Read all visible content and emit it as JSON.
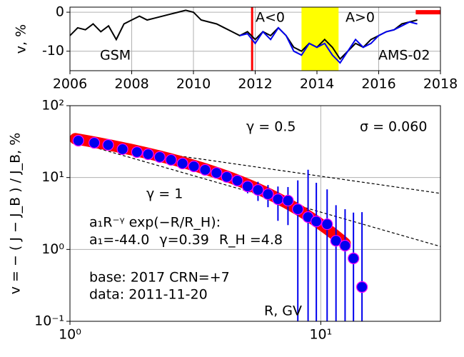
{
  "chart_data": [
    {
      "type": "line",
      "ylabel": "v, %",
      "xlim": [
        2006,
        2018
      ],
      "xticks": [
        2006,
        2008,
        2010,
        2012,
        2014,
        2016,
        2018
      ],
      "ylim": [
        -15,
        1.3
      ],
      "yticks": [
        0,
        -10
      ],
      "grid": true,
      "series": [
        {
          "name": "GSM",
          "color": "#000000",
          "x": [
            2006,
            2006.25,
            2006.5,
            2006.75,
            2007,
            2007.25,
            2007.5,
            2007.75,
            2008,
            2008.25,
            2008.5,
            2008.75,
            2009,
            2009.25,
            2009.5,
            2009.75,
            2010,
            2010.25,
            2010.5,
            2010.75,
            2011,
            2011.25,
            2011.5,
            2011.75,
            2012,
            2012.25,
            2012.5,
            2012.75,
            2013,
            2013.25,
            2013.5,
            2013.75,
            2014,
            2014.25,
            2014.5,
            2014.75,
            2015,
            2015.25,
            2015.5,
            2015.75,
            2016,
            2016.25,
            2016.5,
            2016.75,
            2017,
            2017.25
          ],
          "values": [
            -6,
            -4,
            -4.5,
            -3,
            -5,
            -3.5,
            -7,
            -3,
            -2,
            -1,
            -2,
            -1.5,
            -1,
            -0.5,
            0,
            0.5,
            0,
            -2,
            -2.5,
            -3,
            -4,
            -5,
            -6,
            -5,
            -7,
            -5,
            -6,
            -4,
            -6,
            -9,
            -10,
            -8,
            -9,
            -7,
            -9,
            -12,
            -10,
            -8,
            -9,
            -7,
            -6,
            -5,
            -4.5,
            -3,
            -2.5,
            -2
          ]
        },
        {
          "name": "AMS-02",
          "color": "#0000ee",
          "x": [
            2011.5,
            2011.75,
            2012,
            2012.25,
            2012.5,
            2012.75,
            2013,
            2013.25,
            2013.5,
            2013.75,
            2014,
            2014.25,
            2014.5,
            2014.75,
            2015,
            2015.25,
            2015.5,
            2015.75,
            2016,
            2016.25,
            2016.5,
            2016.75,
            2017,
            2017.25
          ],
          "values": [
            -6,
            -5.5,
            -8,
            -5,
            -7,
            -4,
            -6,
            -10,
            -11,
            -8,
            -9,
            -8,
            -11,
            -13,
            -10,
            -7,
            -9,
            -8,
            -6,
            -5,
            -4.5,
            -3.5,
            -2.5,
            -3
          ]
        }
      ],
      "event_line_x": 2011.9,
      "highlight_span": [
        2013.5,
        2014.7
      ],
      "bar_marker": {
        "x": [
          2017.2,
          2018
        ],
        "y": 0
      },
      "annotations": [
        "A<0",
        "A>0"
      ]
    },
    {
      "type": "scatter",
      "xlabel": "R, GV",
      "ylabel": "v  =  − ( J − J_B ) / J_B,  %",
      "xscale": "log",
      "yscale": "log",
      "xlim": [
        1,
        30
      ],
      "xticks": [
        {
          "value": 1,
          "label": "10⁰"
        },
        {
          "value": 10,
          "label": "10¹"
        }
      ],
      "ylim": [
        0.1,
        100
      ],
      "yticks": [
        {
          "value": 0.1,
          "label": "10⁻¹"
        },
        {
          "value": 1,
          "label": "10⁰"
        },
        {
          "value": 10,
          "label": "10¹"
        },
        {
          "value": 100,
          "label": "10²"
        }
      ],
      "grid": true,
      "color": "#0000ee",
      "x": [
        1.08,
        1.25,
        1.42,
        1.62,
        1.85,
        2.05,
        2.28,
        2.53,
        2.81,
        3.12,
        3.46,
        3.84,
        4.22,
        4.65,
        5.11,
        5.62,
        6.16,
        6.75,
        7.4,
        8.1,
        8.9,
        9.6,
        10.6,
        11.5,
        12.5,
        13.5,
        14.6
      ],
      "values": [
        32.6,
        30.4,
        28.4,
        24.8,
        22.6,
        21.1,
        19.3,
        17.6,
        15.7,
        14.3,
        12.8,
        11.6,
        10.2,
        9.06,
        7.54,
        6.73,
        5.87,
        5.0,
        4.78,
        3.63,
        2.82,
        2.45,
        2.24,
        1.32,
        1.13,
        0.75,
        0.3
      ],
      "errors": [
        0.5,
        0.5,
        0.5,
        0.5,
        0.5,
        0.5,
        0.5,
        0.5,
        0.5,
        0.5,
        0.6,
        0.8,
        1,
        1.2,
        1.5,
        2,
        2,
        2.5,
        2.6,
        5.5,
        10,
        6,
        4.6,
        2.8,
        2.5,
        2.5,
        3
      ],
      "fit": {
        "names": [
          "a₁=",
          "γ=",
          "R_H ="
        ],
        "values": [
          -44.0,
          0.39,
          4.8
        ],
        "value_labels": [
          "-44.0",
          "0.39",
          "4.8"
        ],
        "range": [
          1.05,
          12.5
        ],
        "color": "#ff0000"
      },
      "fit_formula": "a₁R⁻ᵞ exp(−R/R_H):",
      "reference_norm": 33,
      "reference_lines": [
        {
          "label": "γ = 0.5",
          "slope": 0.5
        },
        {
          "label": "γ = 1",
          "slope": 1
        }
      ],
      "annotations": [
        "σ = 0.060",
        "base: 2017   CRN=+7",
        "data: 2011-11-20"
      ]
    }
  ]
}
